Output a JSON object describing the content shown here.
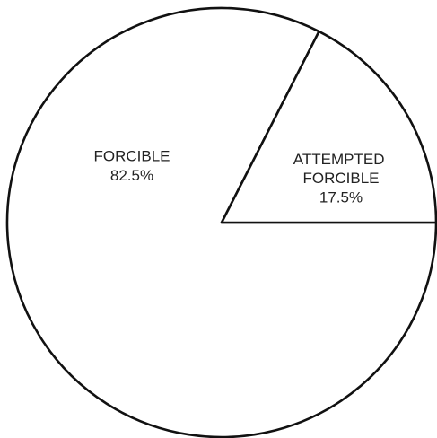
{
  "chart_data": {
    "type": "pie",
    "categories": [
      "FORCIBLE",
      "ATTEMPTED FORCIBLE"
    ],
    "values": [
      82.5,
      17.5
    ],
    "value_labels": [
      "82.5%",
      "17.5%"
    ],
    "colors": [
      "#ffffff",
      "#ffffff"
    ]
  }
}
